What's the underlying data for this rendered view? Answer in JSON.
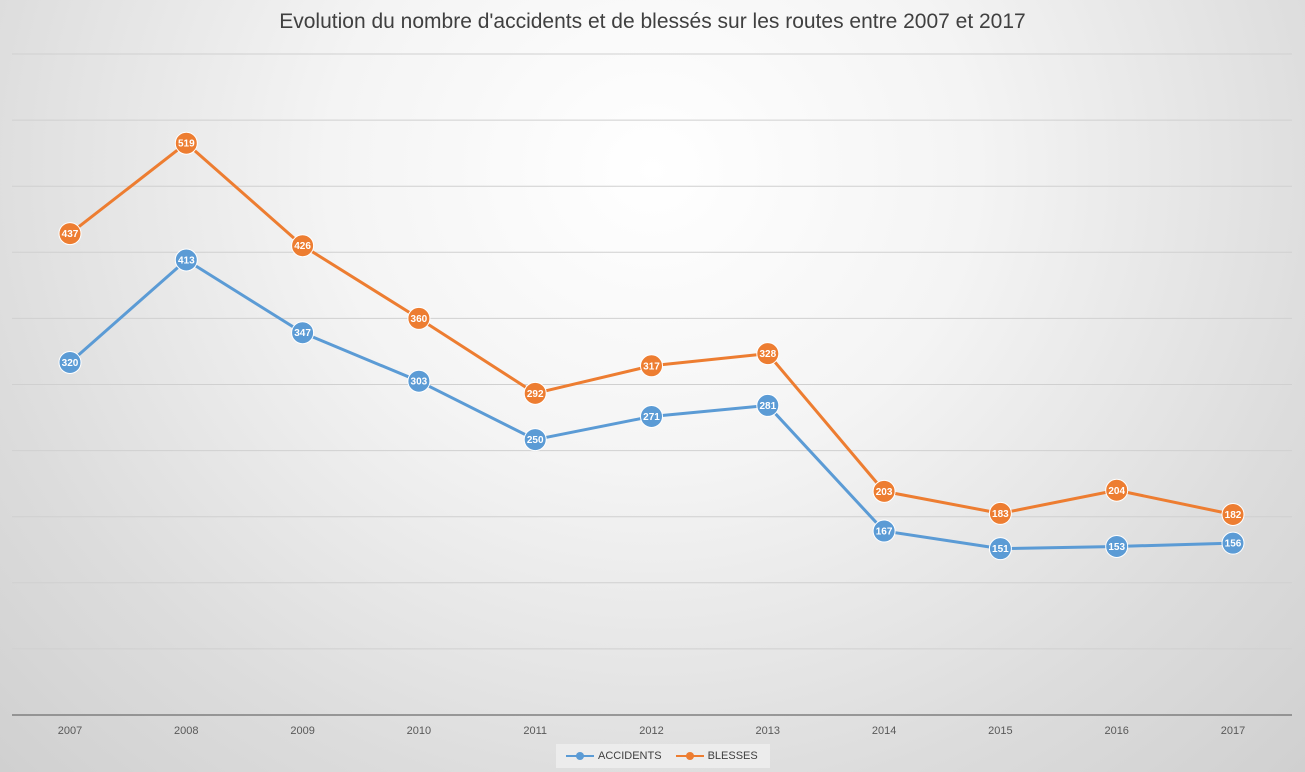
{
  "chart_data": {
    "type": "line",
    "title": "Evolution du nombre d'accidents et de blessés sur les routes entre 2007 et 2017",
    "categories": [
      "2007",
      "2008",
      "2009",
      "2010",
      "2011",
      "2012",
      "2013",
      "2014",
      "2015",
      "2016",
      "2017"
    ],
    "series": [
      {
        "name": "ACCIDENTS",
        "color": "#5b9bd5",
        "values": [
          320,
          413,
          347,
          303,
          250,
          271,
          281,
          167,
          151,
          153,
          156
        ]
      },
      {
        "name": "BLESSES",
        "color": "#ed7d31",
        "values": [
          437,
          519,
          426,
          360,
          292,
          317,
          328,
          203,
          183,
          204,
          182
        ]
      }
    ],
    "ylim": [
      0,
      600
    ],
    "y_axis_labels_shown": false,
    "grid": true,
    "legend_position": "bottom",
    "data_labels": true
  }
}
